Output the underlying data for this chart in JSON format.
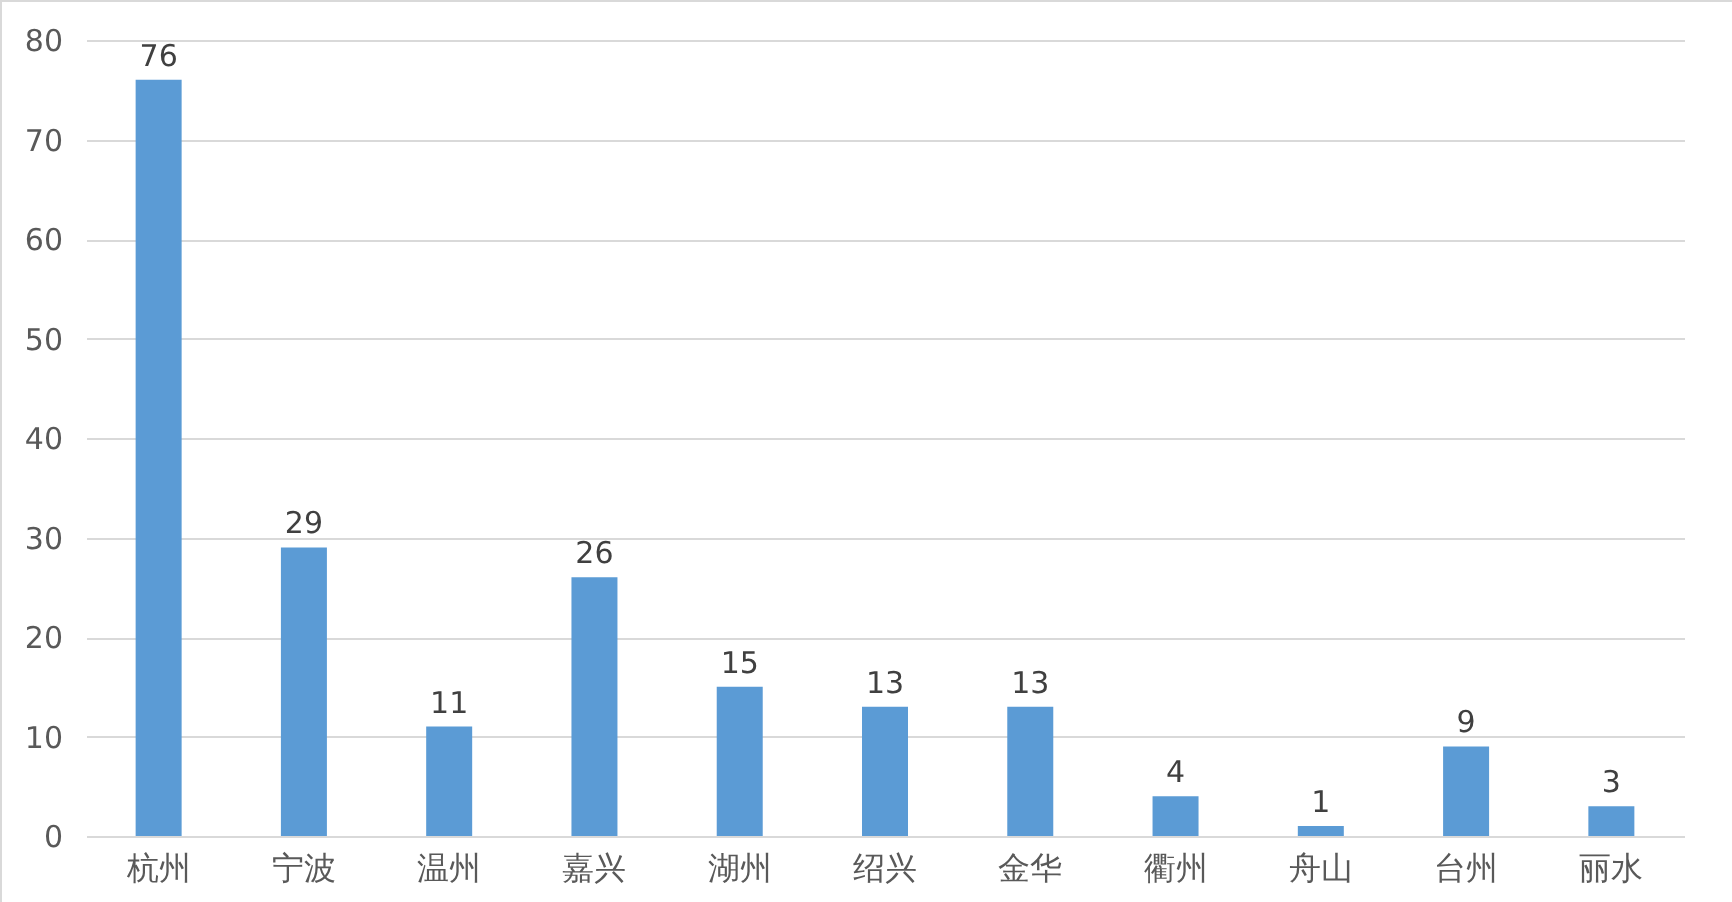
{
  "chart_data": {
    "type": "bar",
    "categories": [
      "杭州",
      "宁波",
      "温州",
      "嘉兴",
      "湖州",
      "绍兴",
      "金华",
      "衢州",
      "舟山",
      "台州",
      "丽水"
    ],
    "values": [
      76,
      29,
      11,
      26,
      15,
      13,
      13,
      4,
      1,
      9,
      3
    ],
    "color": "#5b9bd5",
    "ylim": [
      0,
      80
    ],
    "yticks": [
      0,
      10,
      20,
      30,
      40,
      50,
      60,
      70,
      80
    ],
    "grid": "y",
    "data_labels": true
  }
}
